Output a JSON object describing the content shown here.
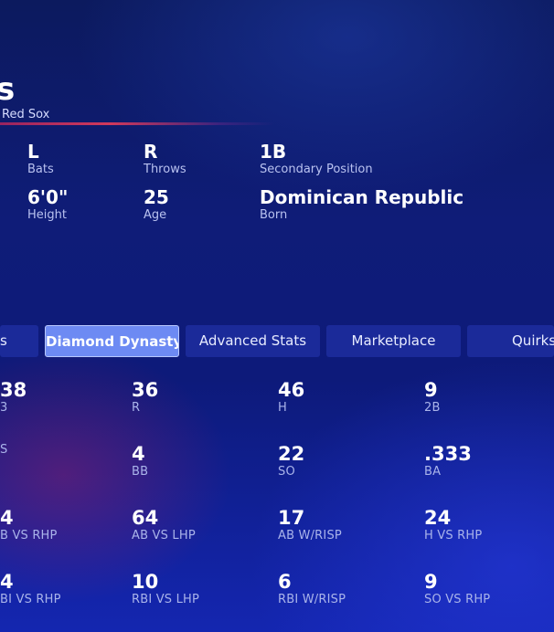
{
  "player": {
    "name_fragment": "s",
    "team": "Red Sox"
  },
  "bio": [
    {
      "value": "L",
      "label": "Bats"
    },
    {
      "value": "R",
      "label": "Throws"
    },
    {
      "value": "1B",
      "label": "Secondary Position"
    },
    {
      "value": "6'0\"",
      "label": "Height"
    },
    {
      "value": "25",
      "label": "Age"
    },
    {
      "value": "Dominican Republic",
      "label": "Born"
    }
  ],
  "tabs": [
    {
      "label": "s"
    },
    {
      "label": "Diamond Dynasty",
      "active": true
    },
    {
      "label": "Advanced Stats"
    },
    {
      "label": "Marketplace"
    },
    {
      "label": "Quirks"
    }
  ],
  "stats": [
    {
      "value": "38",
      "label": "3"
    },
    {
      "value": "36",
      "label": "R"
    },
    {
      "value": "46",
      "label": "H"
    },
    {
      "value": "9",
      "label": "2B"
    },
    {
      "value": "",
      "label": "S"
    },
    {
      "value": "4",
      "label": "BB"
    },
    {
      "value": "22",
      "label": "SO"
    },
    {
      "value": ".333",
      "label": "BA"
    },
    {
      "value": "4",
      "label": "B VS RHP"
    },
    {
      "value": "64",
      "label": "AB VS LHP"
    },
    {
      "value": "17",
      "label": "AB W/RISP"
    },
    {
      "value": "24",
      "label": "H VS RHP"
    },
    {
      "value": "4",
      "label": "BI VS RHP"
    },
    {
      "value": "10",
      "label": "RBI VS LHP"
    },
    {
      "value": "6",
      "label": "RBI W/RISP"
    },
    {
      "value": "9",
      "label": "SO VS RHP"
    }
  ],
  "colors": {
    "active_tab": "#6d8af3",
    "dark_tab": "#1b2a99",
    "accent_line": "#e23c5a"
  }
}
